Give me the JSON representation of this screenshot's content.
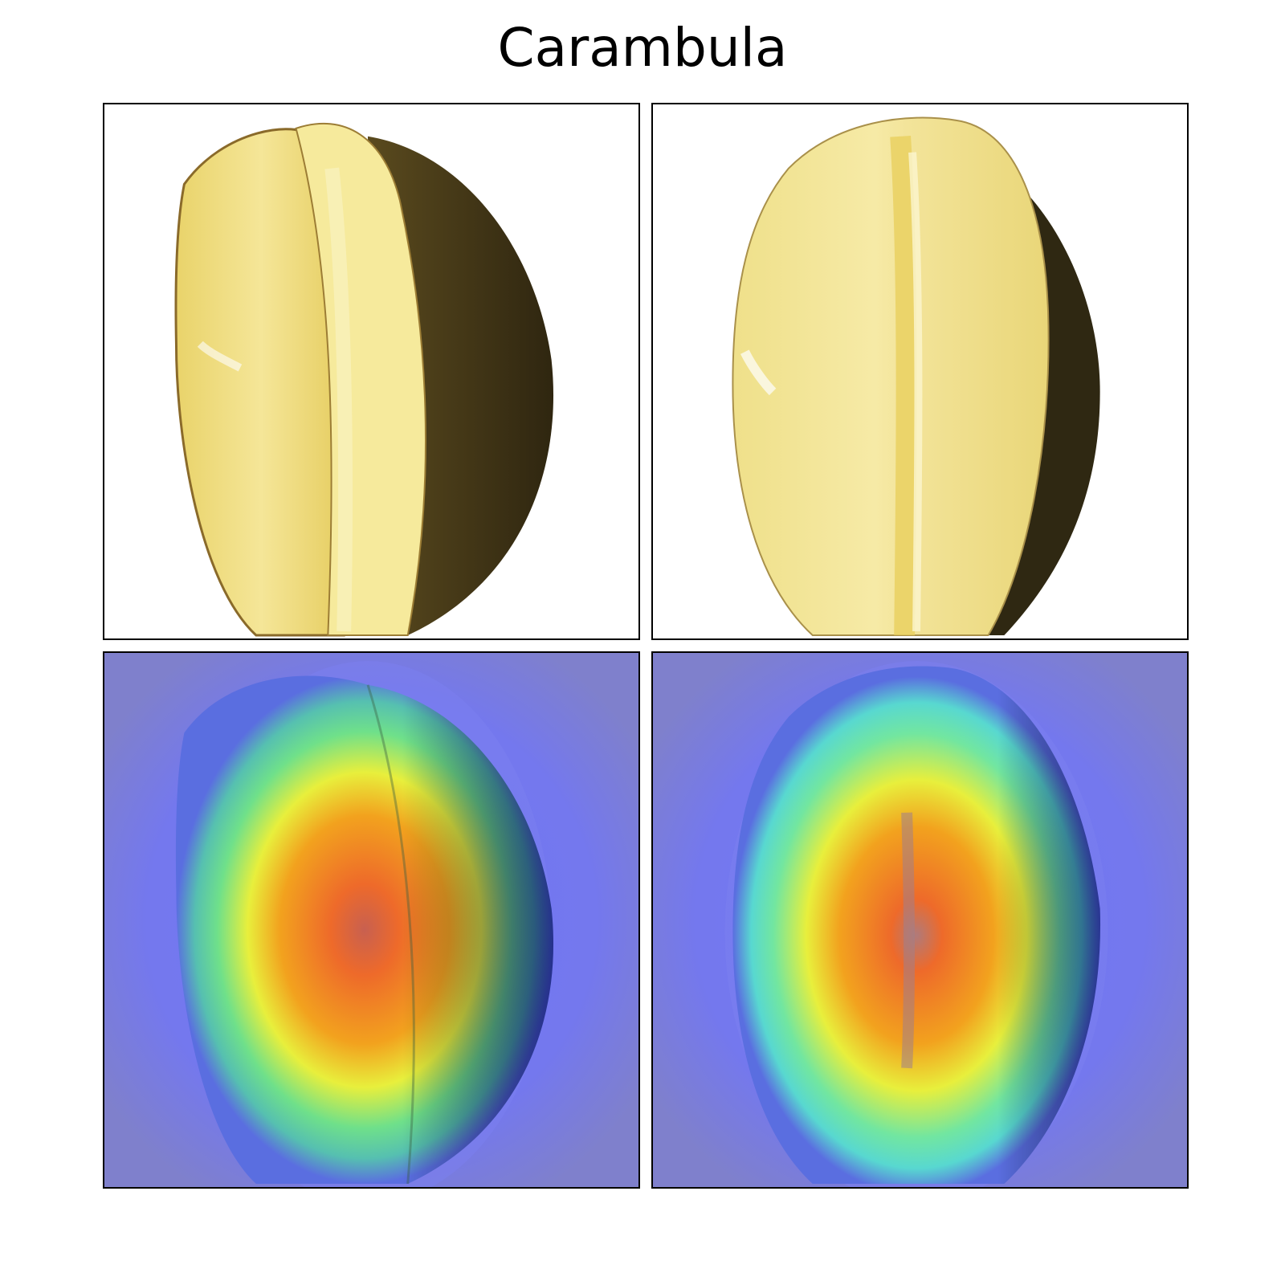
{
  "figure": {
    "title": "Carambula"
  },
  "panels": [
    {
      "name": "original-image-1",
      "kind": "photo"
    },
    {
      "name": "original-image-2",
      "kind": "photo"
    },
    {
      "name": "heatmap-overlay-1",
      "kind": "heatmap"
    },
    {
      "name": "heatmap-overlay-2",
      "kind": "heatmap"
    }
  ],
  "colors": {
    "background": "#ffffff",
    "fruit_light": "#f2e48a",
    "fruit_mid": "#e4cc62",
    "fruit_dark": "#3a2e12",
    "heat_background": "#7f80cc",
    "heat_low": "#6f74f5",
    "heat_mid": "#e7f04a",
    "heat_high": "#ee6a2a"
  }
}
